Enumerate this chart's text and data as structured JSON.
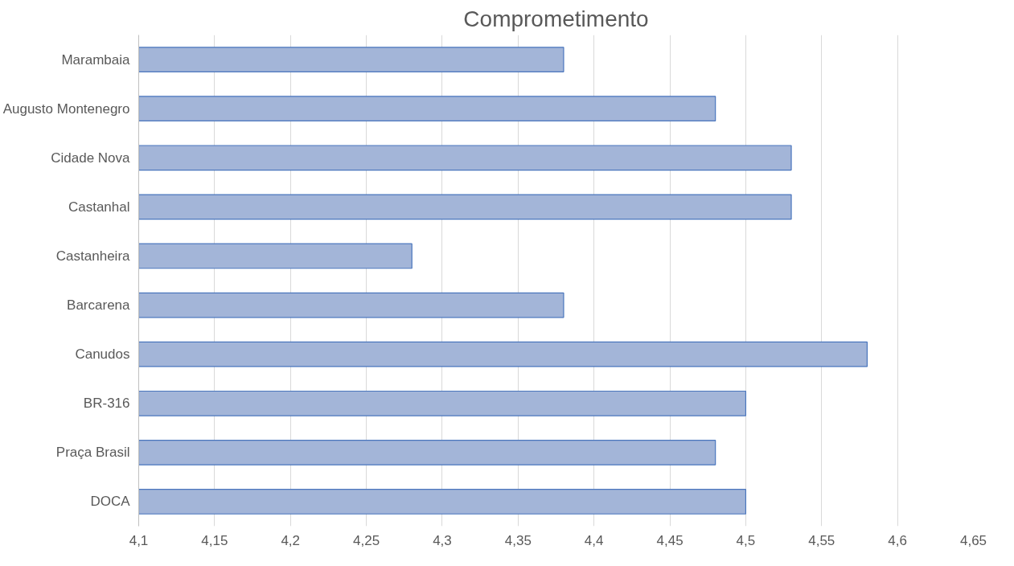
{
  "chart_data": {
    "type": "bar",
    "orientation": "horizontal",
    "title": "Comprometimento",
    "categories": [
      "Marambaia",
      "Augusto Montenegro",
      "Cidade Nova",
      "Castanhal",
      "Castanheira",
      "Barcarena",
      "Canudos",
      "BR-316",
      "Praça Brasil",
      "DOCA"
    ],
    "values": [
      4.38,
      4.48,
      4.53,
      4.53,
      4.28,
      4.38,
      4.58,
      4.5,
      4.48,
      4.5
    ],
    "color": "#a3b5d8",
    "xlim": [
      4.1,
      4.65
    ],
    "xticks": [
      {
        "value": 4.1,
        "label": "4,1"
      },
      {
        "value": 4.15,
        "label": "4,15"
      },
      {
        "value": 4.2,
        "label": "4,2"
      },
      {
        "value": 4.25,
        "label": "4,25"
      },
      {
        "value": 4.3,
        "label": "4,3"
      },
      {
        "value": 4.35,
        "label": "4,35"
      },
      {
        "value": 4.4,
        "label": "4,4"
      },
      {
        "value": 4.45,
        "label": "4,45"
      },
      {
        "value": 4.5,
        "label": "4,5"
      },
      {
        "value": 4.55,
        "label": "4,55"
      },
      {
        "value": 4.6,
        "label": "4,6"
      },
      {
        "value": 4.65,
        "label": "4,65"
      }
    ],
    "grid": "x"
  }
}
